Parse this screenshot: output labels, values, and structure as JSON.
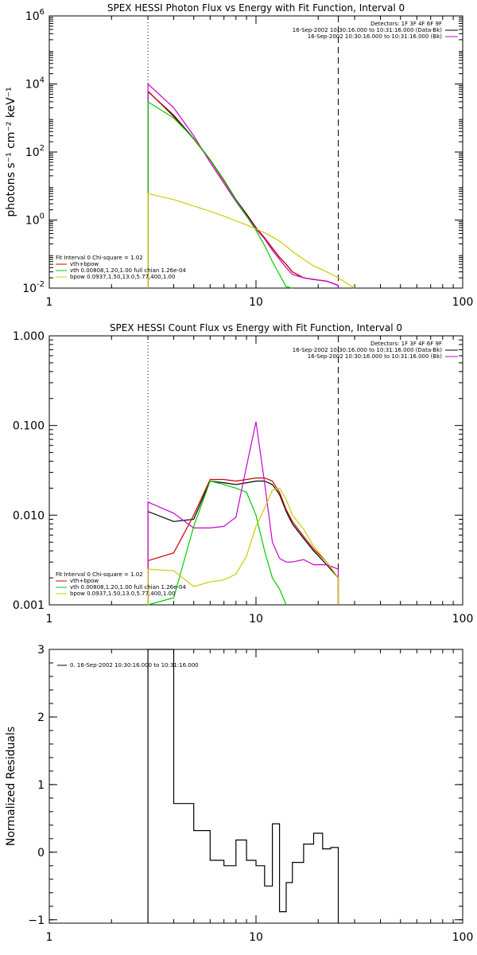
{
  "chart_data": [
    {
      "type": "line",
      "title": "SPEX HESSI Photon Flux vs Energy with Fit Function, Interval 0",
      "ylabel": "photons s⁻¹ cm⁻² keV⁻¹",
      "x_scale": "log",
      "y_scale": "log",
      "xlim": [
        1,
        100
      ],
      "ylim": [
        0.01,
        1000000
      ],
      "x_ticks": [
        {
          "value": 1,
          "label": "1"
        },
        {
          "value": 10,
          "label": "10"
        },
        {
          "value": 100,
          "label": "100"
        }
      ],
      "y_ticks": [
        {
          "value": 0.01,
          "base": "10",
          "exp": "-2"
        },
        {
          "value": 1,
          "base": "10",
          "exp": "0"
        },
        {
          "value": 100,
          "base": "10",
          "exp": "2"
        },
        {
          "value": 10000,
          "base": "10",
          "exp": "4"
        },
        {
          "value": 1000000,
          "base": "10",
          "exp": "6"
        }
      ],
      "vlines": [
        {
          "x": 3.0,
          "style": "dotted"
        },
        {
          "x": 25.0,
          "style": "dashed"
        }
      ],
      "legend_top_right": {
        "lines": [
          "Detectors: 1F 3F 4F 6F 9F",
          "16-Sep-2002 10:30:16.000 to 10:31:16.000 (Data-Bk)",
          "16-Sep-2002 10:30:16.000 to 10:31:16.000 (Bk)"
        ],
        "colors": [
          "",
          "#000000",
          "#cc00cc"
        ]
      },
      "legend_bottom_left": {
        "lines": [
          "Fit Interval 0   Chi-square = 1.02",
          "vth+bpow",
          "vth 0.00808,1.20,1.00  full chian 1.26e-04",
          "bpow 0.0937,1.50,13.0,5.77,400,1.00"
        ],
        "colors": [
          "",
          "#cc0000",
          "#00cc00",
          "#cccc00"
        ]
      },
      "series": [
        {
          "color": "#000000",
          "points": [
            [
              3,
              0.01
            ],
            [
              3,
              6000
            ],
            [
              4,
              1200
            ],
            [
              5,
              250
            ],
            [
              6,
              60
            ],
            [
              7,
              15
            ],
            [
              8,
              4
            ],
            [
              9,
              1.5
            ],
            [
              10,
              0.6
            ],
            [
              11,
              0.3
            ],
            [
              12,
              0.15
            ],
            [
              13,
              0.08
            ],
            [
              14,
              0.05
            ],
            [
              15,
              0.03
            ],
            [
              17,
              0.02
            ],
            [
              19,
              0.018
            ],
            [
              22,
              0.016
            ],
            [
              25,
              0.012
            ],
            [
              25,
              0.01
            ]
          ]
        },
        {
          "color": "#cc0000",
          "points": [
            [
              3,
              0.01
            ],
            [
              3,
              6200
            ],
            [
              4,
              1100
            ],
            [
              5,
              240
            ],
            [
              6,
              58
            ],
            [
              7,
              14
            ],
            [
              8,
              3.8
            ],
            [
              9,
              1.4
            ],
            [
              10,
              0.58
            ],
            [
              11,
              0.3
            ],
            [
              12,
              0.15
            ],
            [
              13,
              0.08
            ],
            [
              14,
              0.05
            ],
            [
              15,
              0.03
            ],
            [
              17,
              0.02
            ],
            [
              19,
              0.018
            ],
            [
              22,
              0.016
            ],
            [
              25,
              0.012
            ],
            [
              25,
              0.01
            ]
          ]
        },
        {
          "color": "#cc00cc",
          "points": [
            [
              3,
              0.01
            ],
            [
              3,
              10000
            ],
            [
              4,
              2000
            ],
            [
              5,
              300
            ],
            [
              6,
              50
            ],
            [
              7,
              12
            ],
            [
              8,
              3.5
            ],
            [
              9,
              1.3
            ],
            [
              10,
              0.55
            ],
            [
              11,
              0.28
            ],
            [
              12,
              0.13
            ],
            [
              13,
              0.07
            ],
            [
              14,
              0.04
            ],
            [
              15,
              0.025
            ],
            [
              17,
              0.02
            ],
            [
              19,
              0.018
            ],
            [
              22,
              0.016
            ],
            [
              25,
              0.012
            ],
            [
              25,
              0.01
            ]
          ]
        },
        {
          "color": "#00cc00",
          "points": [
            [
              3,
              0.01
            ],
            [
              3,
              3000
            ],
            [
              4,
              1000
            ],
            [
              5,
              250
            ],
            [
              6,
              60
            ],
            [
              7,
              15
            ],
            [
              8,
              3.8
            ],
            [
              9,
              1.3
            ],
            [
              10,
              0.5
            ],
            [
              11,
              0.18
            ],
            [
              12,
              0.06
            ],
            [
              13,
              0.025
            ],
            [
              14,
              0.011
            ],
            [
              15,
              0.01
            ]
          ]
        },
        {
          "color": "#cccc00",
          "points": [
            [
              3,
              0.01
            ],
            [
              3,
              6
            ],
            [
              4,
              4
            ],
            [
              5,
              2.6
            ],
            [
              6,
              1.8
            ],
            [
              7,
              1.3
            ],
            [
              8,
              0.95
            ],
            [
              9,
              0.72
            ],
            [
              10,
              0.55
            ],
            [
              11,
              0.42
            ],
            [
              12,
              0.32
            ],
            [
              13,
              0.24
            ],
            [
              14,
              0.17
            ],
            [
              15,
              0.12
            ],
            [
              17,
              0.07
            ],
            [
              19,
              0.045
            ],
            [
              22,
              0.03
            ],
            [
              25,
              0.02
            ],
            [
              28,
              0.013
            ],
            [
              30,
              0.01
            ]
          ]
        }
      ]
    },
    {
      "type": "line",
      "title": "SPEX HESSI Count Flux vs Energy with Fit Function, Interval 0",
      "x_scale": "log",
      "y_scale": "log",
      "xlim": [
        1,
        100
      ],
      "ylim": [
        0.001,
        1
      ],
      "x_ticks": [
        {
          "value": 1,
          "label": "1"
        },
        {
          "value": 10,
          "label": "10"
        },
        {
          "value": 100,
          "label": "100"
        }
      ],
      "y_ticks": [
        {
          "value": 0.001,
          "label": "0.001"
        },
        {
          "value": 0.01,
          "label": "0.010"
        },
        {
          "value": 0.1,
          "label": "0.100"
        },
        {
          "value": 1,
          "label": "1.000"
        }
      ],
      "vlines": [
        {
          "x": 3.0,
          "style": "dotted"
        },
        {
          "x": 25.0,
          "style": "dashed"
        }
      ],
      "legend_top_right": {
        "lines": [
          "Detectors: 1F 3F 4F 6F 9F",
          "16-Sep-2002 10:30:16.000 to 10:31:16.000 (Data-Bk)",
          "16-Sep-2002 10:30:16.000 to 10:31:16.000 (Bk)"
        ],
        "colors": [
          "",
          "#000000",
          "#cc00cc"
        ]
      },
      "legend_bottom_left": {
        "lines": [
          "Fit Interval 0   Chi-square = 1.02",
          "vth+bpow",
          "vth 0.00808,1.20,1.00  full chian 1.26e-04",
          "bpow 0.0937,1.50,13.0,5.77,400,1.00"
        ],
        "colors": [
          "",
          "#cc0000",
          "#00cc00",
          "#cccc00"
        ]
      },
      "series": [
        {
          "color": "#000000",
          "points": [
            [
              3,
              0.001
            ],
            [
              3,
              0.011
            ],
            [
              4,
              0.0085
            ],
            [
              5,
              0.009
            ],
            [
              6,
              0.024
            ],
            [
              7,
              0.023
            ],
            [
              8,
              0.022
            ],
            [
              9,
              0.023
            ],
            [
              10,
              0.024
            ],
            [
              11,
              0.024
            ],
            [
              12,
              0.022
            ],
            [
              13,
              0.017
            ],
            [
              14,
              0.011
            ],
            [
              15,
              0.008
            ],
            [
              17,
              0.0055
            ],
            [
              19,
              0.004
            ],
            [
              22,
              0.0028
            ],
            [
              25,
              0.002
            ],
            [
              25,
              0.001
            ]
          ]
        },
        {
          "color": "#cc0000",
          "points": [
            [
              3,
              0.001
            ],
            [
              3,
              0.0031
            ],
            [
              4,
              0.0038
            ],
            [
              5,
              0.01
            ],
            [
              6,
              0.025
            ],
            [
              7,
              0.025
            ],
            [
              8,
              0.024
            ],
            [
              9,
              0.025
            ],
            [
              10,
              0.026
            ],
            [
              11,
              0.026
            ],
            [
              12,
              0.024
            ],
            [
              13,
              0.018
            ],
            [
              14,
              0.0115
            ],
            [
              15,
              0.0085
            ],
            [
              17,
              0.0058
            ],
            [
              19,
              0.0042
            ],
            [
              22,
              0.003
            ],
            [
              25,
              0.002
            ],
            [
              25,
              0.001
            ]
          ]
        },
        {
          "color": "#cc00cc",
          "points": [
            [
              3,
              0.001
            ],
            [
              3,
              0.014
            ],
            [
              4,
              0.0105
            ],
            [
              5,
              0.0072
            ],
            [
              6,
              0.0072
            ],
            [
              7,
              0.0075
            ],
            [
              8,
              0.0095
            ],
            [
              9,
              0.035
            ],
            [
              10,
              0.11
            ],
            [
              11,
              0.023
            ],
            [
              12,
              0.005
            ],
            [
              13,
              0.0033
            ],
            [
              14,
              0.003
            ],
            [
              15,
              0.003
            ],
            [
              17,
              0.0032
            ],
            [
              19,
              0.0028
            ],
            [
              22,
              0.0028
            ],
            [
              25,
              0.0025
            ],
            [
              25,
              0.001
            ]
          ]
        },
        {
          "color": "#00cc00",
          "points": [
            [
              3,
              0.001
            ],
            [
              4,
              0.0012
            ],
            [
              5,
              0.0075
            ],
            [
              6,
              0.024
            ],
            [
              7,
              0.022
            ],
            [
              8,
              0.02
            ],
            [
              9,
              0.018
            ],
            [
              10,
              0.01
            ],
            [
              11,
              0.004
            ],
            [
              12,
              0.002
            ],
            [
              13,
              0.0015
            ],
            [
              14,
              0.001
            ]
          ]
        },
        {
          "color": "#cccc00",
          "points": [
            [
              3,
              0.001
            ],
            [
              3,
              0.0025
            ],
            [
              4,
              0.0024
            ],
            [
              5,
              0.0016
            ],
            [
              6,
              0.0018
            ],
            [
              7,
              0.0019
            ],
            [
              8,
              0.0022
            ],
            [
              9,
              0.0035
            ],
            [
              10,
              0.0075
            ],
            [
              11,
              0.012
            ],
            [
              12,
              0.019
            ],
            [
              13,
              0.02
            ],
            [
              14,
              0.015
            ],
            [
              15,
              0.01
            ],
            [
              17,
              0.007
            ],
            [
              19,
              0.0045
            ],
            [
              22,
              0.003
            ],
            [
              25,
              0.002
            ],
            [
              25,
              0.001
            ]
          ]
        }
      ]
    },
    {
      "type": "line",
      "ylabel": "Normalized Residuals",
      "x_scale": "log",
      "y_scale": "linear",
      "xlim": [
        1,
        100
      ],
      "ylim": [
        -1.05,
        3
      ],
      "x_ticks": [
        {
          "value": 1,
          "label": "1"
        },
        {
          "value": 10,
          "label": "10"
        },
        {
          "value": 100,
          "label": "100"
        }
      ],
      "y_ticks": [
        {
          "value": -1,
          "label": "−1"
        },
        {
          "value": 0,
          "label": "0"
        },
        {
          "value": 1,
          "label": "1"
        },
        {
          "value": 2,
          "label": "2"
        },
        {
          "value": 3,
          "label": "3"
        }
      ],
      "legend_top_left": {
        "lines": [
          "0. 16-Sep-2002 10:30:16.000 to 10:31:16.000"
        ],
        "colors": [
          "#000000"
        ]
      },
      "series": [
        {
          "color": "#000000",
          "points": [
            [
              3,
              -1.05
            ],
            [
              3,
              3.2
            ],
            [
              4,
              3.2
            ],
            [
              4,
              0.72
            ],
            [
              5,
              0.72
            ],
            [
              5,
              0.32
            ],
            [
              6,
              0.32
            ],
            [
              6,
              -0.12
            ],
            [
              7,
              -0.12
            ],
            [
              7,
              -0.2
            ],
            [
              8,
              -0.2
            ],
            [
              8,
              0.18
            ],
            [
              9,
              0.18
            ],
            [
              9,
              -0.12
            ],
            [
              10,
              -0.12
            ],
            [
              10,
              -0.2
            ],
            [
              11,
              -0.2
            ],
            [
              11,
              -0.5
            ],
            [
              12,
              -0.5
            ],
            [
              12,
              0.42
            ],
            [
              13,
              0.42
            ],
            [
              13,
              -0.88
            ],
            [
              14,
              -0.88
            ],
            [
              14,
              -0.45
            ],
            [
              15,
              -0.45
            ],
            [
              15,
              -0.15
            ],
            [
              17,
              -0.15
            ],
            [
              17,
              0.12
            ],
            [
              19,
              0.12
            ],
            [
              19,
              0.28
            ],
            [
              21,
              0.28
            ],
            [
              21,
              0.05
            ],
            [
              23,
              0.05
            ],
            [
              23,
              0.07
            ],
            [
              25,
              0.07
            ],
            [
              25,
              -1.05
            ]
          ]
        }
      ]
    }
  ]
}
